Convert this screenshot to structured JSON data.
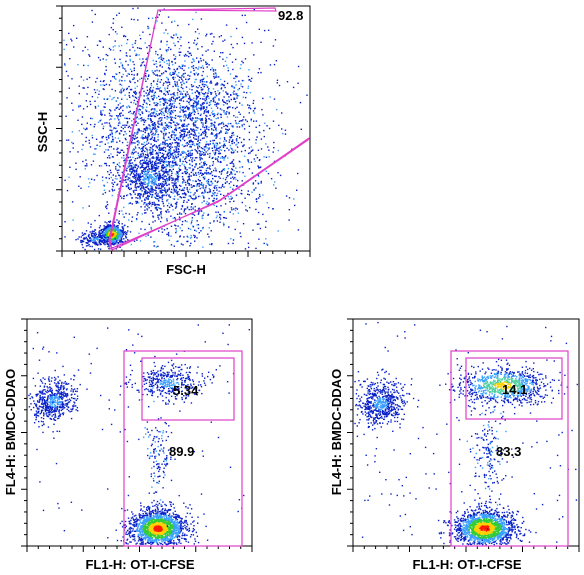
{
  "colors": {
    "gate": "#e040c8",
    "frame": "#000000",
    "density_low": "#0a22c8",
    "density_mid": "#3aa0ff",
    "density_high": "#ffd000",
    "density_peak": "#ff1a00"
  },
  "chart_data": [
    {
      "type": "scatter",
      "panel": "top",
      "xlabel": "FSC-H",
      "ylabel": "SSC-H",
      "gate_labels": [
        "92.8"
      ],
      "clusters": [
        {
          "name": "debris",
          "x": 0.2,
          "y": 0.07,
          "density": "peak"
        },
        {
          "name": "cells",
          "x": 0.4,
          "y": 0.4,
          "density": "low"
        }
      ]
    },
    {
      "type": "scatter",
      "panel": "bottom-left",
      "xlabel": "FL1-H: OT-I-CFSE",
      "ylabel": "FL4-H: BMDC-DDAO",
      "gate_labels": [
        "5.34",
        "89.9"
      ],
      "clusters": [
        {
          "name": "BMDC",
          "x": 0.12,
          "y": 0.65,
          "density": "mid"
        },
        {
          "name": "conjugates",
          "x": 0.63,
          "y": 0.7,
          "density": "mid"
        },
        {
          "name": "OT-I",
          "x": 0.58,
          "y": 0.09,
          "density": "peak"
        }
      ]
    },
    {
      "type": "scatter",
      "panel": "bottom-right",
      "xlabel": "FL1-H: OT-I-CFSE",
      "ylabel": "FL4-H: BMDC-DDAO",
      "gate_labels": [
        "14.1",
        "83.3"
      ],
      "clusters": [
        {
          "name": "BMDC",
          "x": 0.12,
          "y": 0.62,
          "density": "mid"
        },
        {
          "name": "conjugates",
          "x": 0.65,
          "y": 0.7,
          "density": "high"
        },
        {
          "name": "OT-I",
          "x": 0.58,
          "y": 0.09,
          "density": "peak"
        }
      ]
    }
  ]
}
